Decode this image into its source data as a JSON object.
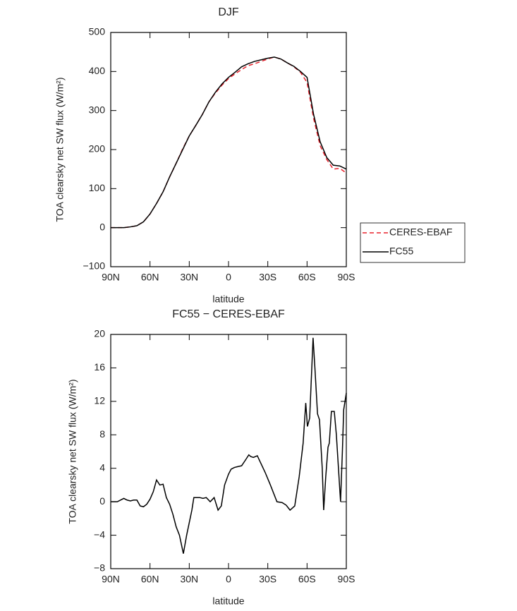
{
  "chart_data": [
    {
      "type": "line",
      "title": "DJF",
      "xlabel": "latitude",
      "ylabel": "TOA clearsky net SW flux (W/m²)",
      "x": [
        90,
        85,
        80,
        75,
        70,
        65,
        60,
        55,
        50,
        45,
        40,
        35,
        30,
        25,
        20,
        15,
        10,
        5,
        0,
        -5,
        -10,
        -15,
        -20,
        -25,
        -30,
        -35,
        -40,
        -45,
        -50,
        -55,
        -60,
        -65,
        -70,
        -75,
        -80,
        -85,
        -90
      ],
      "series": [
        {
          "name": "CERES-EBAF",
          "color": "#e8202a",
          "dashed": true,
          "values": [
            0,
            0,
            0,
            2,
            5,
            15,
            35,
            62,
            92,
            130,
            165,
            202,
            235,
            262,
            290,
            322,
            345,
            365,
            382,
            394,
            405,
            415,
            420,
            426,
            432,
            437,
            432,
            422,
            412,
            398,
            372,
            280,
            210,
            175,
            150,
            152,
            140
          ]
        },
        {
          "name": "FC55",
          "color": "#000000",
          "dashed": false,
          "values": [
            0,
            0,
            0,
            2,
            5,
            15,
            35,
            62,
            92,
            130,
            165,
            200,
            235,
            262,
            290,
            322,
            347,
            368,
            385,
            398,
            412,
            420,
            426,
            430,
            434,
            437,
            432,
            422,
            413,
            400,
            385,
            290,
            220,
            180,
            160,
            158,
            150
          ]
        }
      ],
      "xlim": [
        90,
        -90
      ],
      "xticks": [
        {
          "value": 90,
          "label": "90N"
        },
        {
          "value": 60,
          "label": "60N"
        },
        {
          "value": 30,
          "label": "30N"
        },
        0,
        {
          "value": -30,
          "label": "30S"
        },
        {
          "value": -60,
          "label": "60S"
        },
        {
          "value": -90,
          "label": "90S"
        }
      ],
      "ylim": [
        -100,
        500
      ],
      "yticks": [
        {
          "value": -100,
          "label": "−100"
        },
        0,
        100,
        200,
        300,
        400,
        500
      ],
      "legend": "outside-right"
    },
    {
      "type": "line",
      "title": "FC55 − CERES-EBAF",
      "xlabel": "latitude",
      "ylabel": "TOA clearsky net SW flux (W/m²)",
      "x": [
        90,
        85,
        80,
        77.5,
        75,
        72.5,
        70,
        67.5,
        65,
        62.5,
        60,
        57.5,
        55,
        52.5,
        50,
        47.5,
        45,
        42.5,
        40,
        37.5,
        34.5,
        32,
        30,
        28,
        26.5,
        22,
        19.5,
        17,
        14,
        11,
        8,
        5.5,
        3,
        0,
        -2,
        -4.5,
        -7,
        -10,
        -13,
        -15.5,
        -17,
        -19,
        -22,
        -25,
        -28,
        -32,
        -37,
        -41,
        -44,
        -47,
        -50.6,
        -54,
        -57,
        -59,
        -60.3,
        -62,
        -64.6,
        -66,
        -68,
        -69.5,
        -71.6,
        -72.7,
        -74.3,
        -76,
        -77,
        -78.6,
        -80.8,
        -82.4,
        -84,
        -85.6,
        -87,
        -88,
        -90
      ],
      "series": [
        {
          "color": "#000000",
          "dashed": false,
          "values": [
            0,
            0,
            0.4,
            0.2,
            0.1,
            0.2,
            0.2,
            -0.5,
            -0.6,
            -0.3,
            0.3,
            1.2,
            2.6,
            2,
            2.1,
            0.5,
            -0.3,
            -1.5,
            -3,
            -4,
            -6.2,
            -4,
            -2.5,
            -1,
            0.5,
            0.5,
            0.4,
            0.5,
            0,
            0.5,
            -1,
            -0.5,
            2,
            3.3,
            3.9,
            4.1,
            4.2,
            4.3,
            5,
            5.6,
            5.4,
            5.3,
            5.5,
            4.5,
            3.5,
            2,
            0,
            -0.1,
            -0.4,
            -1,
            -0.5,
            3,
            7,
            11.8,
            9,
            10,
            19.6,
            16,
            10.5,
            9.8,
            4,
            -1,
            3,
            6.5,
            7,
            10.8,
            10.8,
            8,
            4,
            0,
            6,
            11,
            13
          ]
        }
      ],
      "xlim": [
        90,
        -90
      ],
      "xticks": [
        {
          "value": 90,
          "label": "90N"
        },
        {
          "value": 60,
          "label": "60N"
        },
        {
          "value": 30,
          "label": "30N"
        },
        0,
        {
          "value": -30,
          "label": "30S"
        },
        {
          "value": -60,
          "label": "60S"
        },
        {
          "value": -90,
          "label": "90S"
        }
      ],
      "ylim": [
        -8,
        20
      ],
      "yticks": [
        {
          "value": -8,
          "label": "−8"
        },
        {
          "value": -4,
          "label": "−4"
        },
        0,
        4,
        8,
        12,
        16,
        20
      ]
    }
  ]
}
